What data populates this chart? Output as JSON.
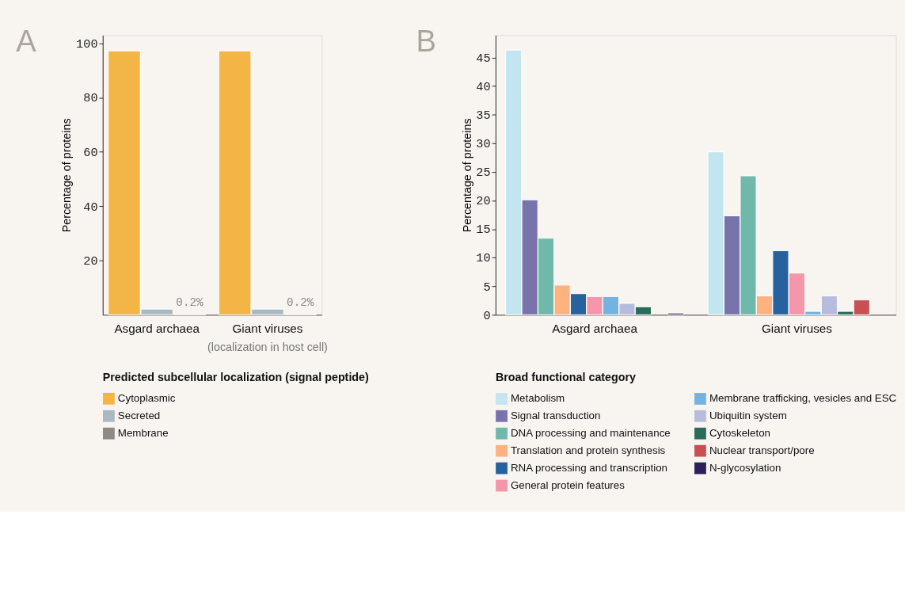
{
  "chart_data": [
    {
      "type": "bar",
      "title": "A",
      "ylabel": "Percentage of proteins",
      "legend_title": "Predicted subcellular localization (signal peptide)",
      "categories": [
        "Asgard archaea",
        "Giant viruses"
      ],
      "series": [
        {
          "name": "Cytoplasmic",
          "color": "#f3b546",
          "values": [
            97.2,
            97.2
          ]
        },
        {
          "name": "Secreted",
          "color": "#aab8c2",
          "values": [
            2.1,
            2.1
          ]
        },
        {
          "name": "Membrane",
          "color": "#8e8a85",
          "values": [
            0.2,
            0.2
          ],
          "value_labels": [
            "0.2%",
            "0.2%"
          ]
        }
      ],
      "ylim": [
        0,
        103
      ],
      "yticks": [
        20,
        40,
        60,
        80,
        100
      ],
      "grid": false,
      "legend": "bottom",
      "annotations": [
        "(localization in host cell)"
      ]
    },
    {
      "type": "bar",
      "title": "B",
      "ylabel": "Percentage of proteins",
      "legend_title": "Broad functional category",
      "categories": [
        "Asgard archaea",
        "Giant viruses"
      ],
      "series": [
        {
          "name": "Metabolism",
          "color": "#c3e5ef",
          "values": [
            46.3,
            28.5
          ]
        },
        {
          "name": "Signal transduction",
          "color": "#7873ab",
          "values": [
            20.1,
            17.3
          ]
        },
        {
          "name": "DNA processing and maintenance",
          "color": "#70b9aa",
          "values": [
            13.4,
            24.3
          ]
        },
        {
          "name": "Translation and protein synthesis",
          "color": "#fdb27f",
          "values": [
            5.2,
            3.3
          ]
        },
        {
          "name": "RNA processing and transcription",
          "color": "#28629e",
          "values": [
            3.7,
            11.2
          ]
        },
        {
          "name": "General protein features",
          "color": "#f596aa",
          "values": [
            3.2,
            7.3
          ]
        },
        {
          "name": "Membrane trafficking, vesicles and ESC",
          "color": "#74b3e0",
          "values": [
            3.2,
            0.6
          ]
        },
        {
          "name": "Ubiquitin system",
          "color": "#b8bcdc",
          "values": [
            2.0,
            3.3
          ]
        },
        {
          "name": "Cytoskeleton",
          "color": "#2b6b5a",
          "values": [
            1.4,
            0.6
          ]
        },
        {
          "name": "Nuclear transport/pore",
          "color": "#c84f52",
          "values": [
            null,
            2.6
          ]
        },
        {
          "name": "N-glycosylation",
          "color": "#2c1f5a",
          "values": [
            0.3,
            null
          ]
        }
      ],
      "ylim": [
        0,
        48.9
      ],
      "yticks": [
        0,
        5,
        10,
        15,
        20,
        25,
        30,
        35,
        40,
        45
      ],
      "grid": false,
      "legend": "bottom"
    }
  ]
}
